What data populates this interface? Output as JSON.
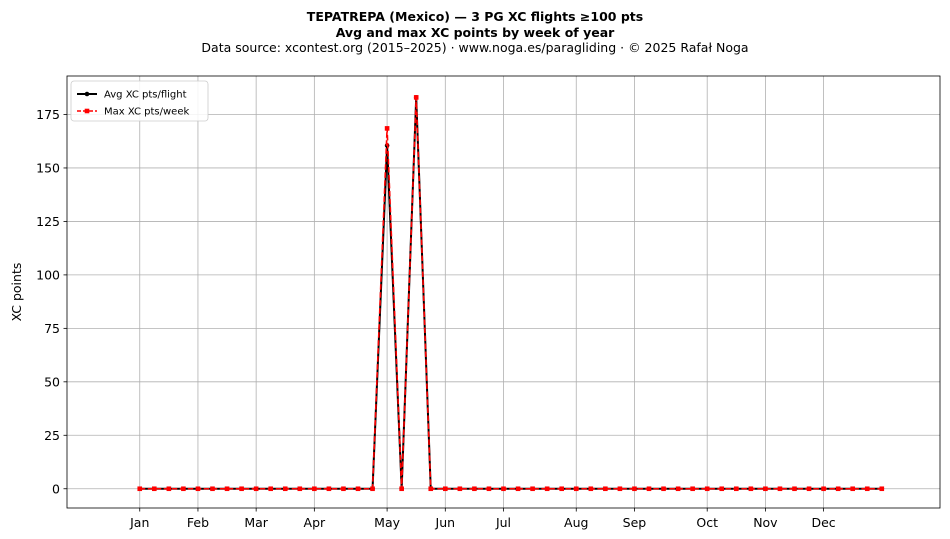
{
  "title": {
    "line1": "TEPATREPA (Mexico)  —  3 PG XC flights ≥100 pts",
    "line2": "Avg and max XC points by week of year",
    "line3": "Data source: xcontest.org (2015–2025)  ·  www.noga.es/paragliding  ·  © 2025 Rafał Noga"
  },
  "chart_data": {
    "type": "line",
    "xlabel": "",
    "ylabel": "XC points",
    "x_domain": [
      -4,
      56
    ],
    "ylim": [
      -9,
      193
    ],
    "x_ticks": [
      {
        "label": "Jan",
        "week": 1
      },
      {
        "label": "Feb",
        "week": 5
      },
      {
        "label": "Mar",
        "week": 9
      },
      {
        "label": "Apr",
        "week": 13
      },
      {
        "label": "May",
        "week": 18
      },
      {
        "label": "Jun",
        "week": 22
      },
      {
        "label": "Jul",
        "week": 26
      },
      {
        "label": "Aug",
        "week": 31
      },
      {
        "label": "Sep",
        "week": 35
      },
      {
        "label": "Oct",
        "week": 40
      },
      {
        "label": "Nov",
        "week": 44
      },
      {
        "label": "Dec",
        "week": 48
      }
    ],
    "y_ticks": [
      0,
      25,
      50,
      75,
      100,
      125,
      150,
      175
    ],
    "grid": true,
    "legend_position": "top-left",
    "series": [
      {
        "name": "Avg XC pts/flight",
        "color": "#000000",
        "style": "solid-dot",
        "x": [
          1,
          2,
          3,
          4,
          5,
          6,
          7,
          8,
          9,
          10,
          11,
          12,
          13,
          14,
          15,
          16,
          17,
          18,
          19,
          20,
          21,
          22,
          23,
          24,
          25,
          26,
          27,
          28,
          29,
          30,
          31,
          32,
          33,
          34,
          35,
          36,
          37,
          38,
          39,
          40,
          41,
          42,
          43,
          44,
          45,
          46,
          47,
          48,
          49,
          50,
          51,
          52
        ],
        "values": [
          0,
          0,
          0,
          0,
          0,
          0,
          0,
          0,
          0,
          0,
          0,
          0,
          0,
          0,
          0,
          0,
          0,
          160.5,
          0,
          183,
          0,
          0,
          0,
          0,
          0,
          0,
          0,
          0,
          0,
          0,
          0,
          0,
          0,
          0,
          0,
          0,
          0,
          0,
          0,
          0,
          0,
          0,
          0,
          0,
          0,
          0,
          0,
          0,
          0,
          0,
          0,
          0
        ]
      },
      {
        "name": "Max XC pts/week",
        "color": "#ff0000",
        "style": "dashed-square",
        "x": [
          1,
          2,
          3,
          4,
          5,
          6,
          7,
          8,
          9,
          10,
          11,
          12,
          13,
          14,
          15,
          16,
          17,
          18,
          19,
          20,
          21,
          22,
          23,
          24,
          25,
          26,
          27,
          28,
          29,
          30,
          31,
          32,
          33,
          34,
          35,
          36,
          37,
          38,
          39,
          40,
          41,
          42,
          43,
          44,
          45,
          46,
          47,
          48,
          49,
          50,
          51,
          52
        ],
        "values": [
          0,
          0,
          0,
          0,
          0,
          0,
          0,
          0,
          0,
          0,
          0,
          0,
          0,
          0,
          0,
          0,
          0,
          168.5,
          0,
          183,
          0,
          0,
          0,
          0,
          0,
          0,
          0,
          0,
          0,
          0,
          0,
          0,
          0,
          0,
          0,
          0,
          0,
          0,
          0,
          0,
          0,
          0,
          0,
          0,
          0,
          0,
          0,
          0,
          0,
          0,
          0,
          0
        ]
      }
    ]
  }
}
